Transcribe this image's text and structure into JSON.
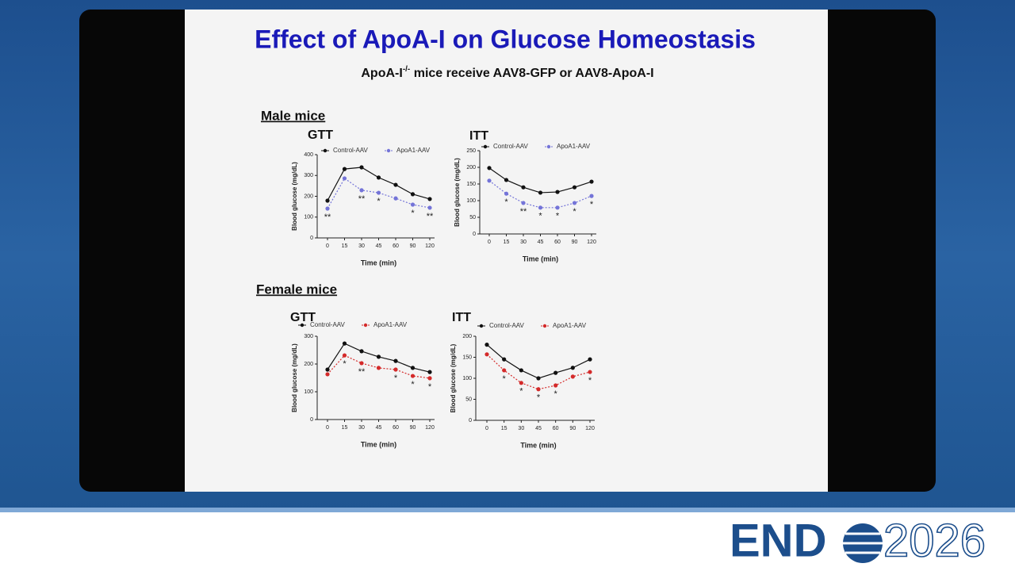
{
  "slide": {
    "title": "Effect of ApoA-I on Glucose Homeostasis",
    "subtitle": [
      "ApoA-I",
      "-/-",
      " mice receive AAV8-GFP or AAV8-ApoA-I"
    ],
    "groups": [
      "Male mice",
      "Female mice"
    ]
  },
  "logo": {
    "left": "END",
    "right": "2026"
  },
  "chart_data": [
    {
      "type": "line",
      "title": "GTT",
      "ylabel": "Blood glucose (mg/dL)",
      "xlabel": "Time (min)",
      "categories": [
        "0",
        "15",
        "30",
        "45",
        "60",
        "90",
        "120"
      ],
      "ylim": [
        0,
        400
      ],
      "yticks": [
        0,
        100,
        200,
        300,
        400
      ],
      "series": [
        {
          "name": "Control-AAV",
          "color": "#111111",
          "line_style": "solid",
          "values": [
            179,
            331,
            339,
            290,
            255,
            210,
            187
          ]
        },
        {
          "name": "ApoA1-AAV",
          "color": "#7474d8",
          "line_style": "dotted",
          "values": [
            141,
            286,
            229,
            217,
            190,
            160,
            145
          ]
        }
      ],
      "significance": [
        "**",
        null,
        "**",
        "*",
        null,
        "*",
        "**"
      ]
    },
    {
      "type": "line",
      "title": "ITT",
      "ylabel": "Blood glucose (mg/dL)",
      "xlabel": "Time (min)",
      "categories": [
        "0",
        "15",
        "30",
        "45",
        "60",
        "90",
        "120"
      ],
      "ylim": [
        0,
        250
      ],
      "yticks": [
        0,
        50,
        100,
        150,
        200,
        250
      ],
      "series": [
        {
          "name": "Control-AAV",
          "color": "#111111",
          "line_style": "solid",
          "values": [
            198,
            162,
            140,
            124,
            126,
            140,
            157
          ]
        },
        {
          "name": "ApoA1-AAV",
          "color": "#7474d8",
          "line_style": "dotted",
          "values": [
            160,
            121,
            93,
            79,
            79,
            93,
            114
          ]
        }
      ],
      "significance": [
        null,
        "*",
        "**",
        "*",
        "*",
        "*",
        "*"
      ]
    },
    {
      "type": "line",
      "title": "GTT",
      "ylabel": "Blood glucose (mg/dL)",
      "xlabel": "Time (min)",
      "categories": [
        "0",
        "15",
        "30",
        "45",
        "60",
        "90",
        "120"
      ],
      "ylim": [
        0,
        300
      ],
      "yticks": [
        0,
        100,
        200,
        300
      ],
      "series": [
        {
          "name": "Control-AAV",
          "color": "#111111",
          "line_style": "solid",
          "values": [
            180,
            274,
            246,
            226,
            211,
            186,
            171
          ]
        },
        {
          "name": "ApoA1-AAV",
          "color": "#d42a2a",
          "line_style": "dotted",
          "values": [
            163,
            231,
            203,
            186,
            180,
            157,
            149
          ]
        }
      ],
      "significance": [
        null,
        "*",
        "**",
        null,
        "*",
        "*",
        "*"
      ]
    },
    {
      "type": "line",
      "title": "ITT",
      "ylabel": "Blood glucose (mg/dL)",
      "xlabel": "Time (min)",
      "categories": [
        "0",
        "15",
        "30",
        "45",
        "60",
        "90",
        "120"
      ],
      "ylim": [
        0,
        200
      ],
      "yticks": [
        0,
        50,
        100,
        150,
        200
      ],
      "series": [
        {
          "name": "Control-AAV",
          "color": "#111111",
          "line_style": "solid",
          "values": [
            180,
            145,
            119,
            100,
            113,
            125,
            145
          ]
        },
        {
          "name": "ApoA1-AAV",
          "color": "#d42a2a",
          "line_style": "dotted",
          "values": [
            157,
            119,
            89,
            74,
            83,
            104,
            115
          ]
        }
      ],
      "significance": [
        null,
        "*",
        "*",
        "*",
        "*",
        null,
        "*"
      ]
    }
  ]
}
